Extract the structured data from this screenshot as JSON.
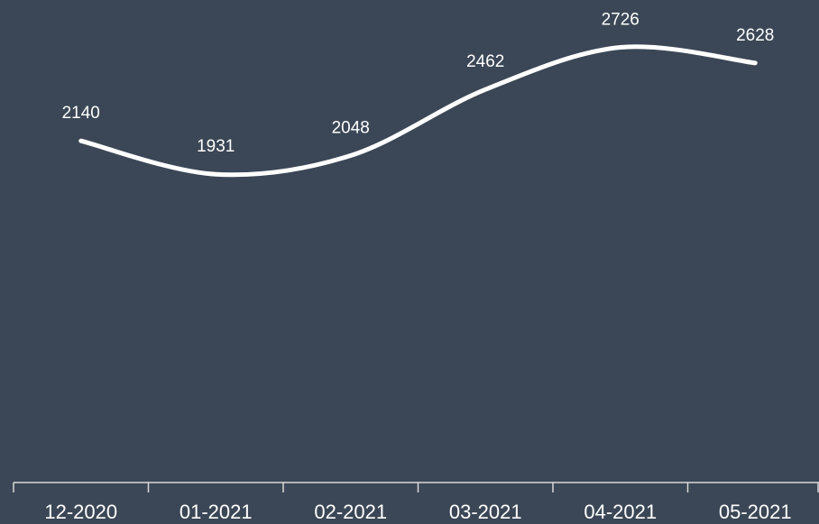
{
  "chart_data": {
    "type": "line",
    "categories": [
      "12-2020",
      "01-2021",
      "02-2021",
      "03-2021",
      "04-2021",
      "05-2021"
    ],
    "values": [
      2140,
      1931,
      2048,
      2462,
      2726,
      2628
    ],
    "color": "#ffffff",
    "background": "#3b4756",
    "ylim": [
      0,
      3000
    ]
  }
}
